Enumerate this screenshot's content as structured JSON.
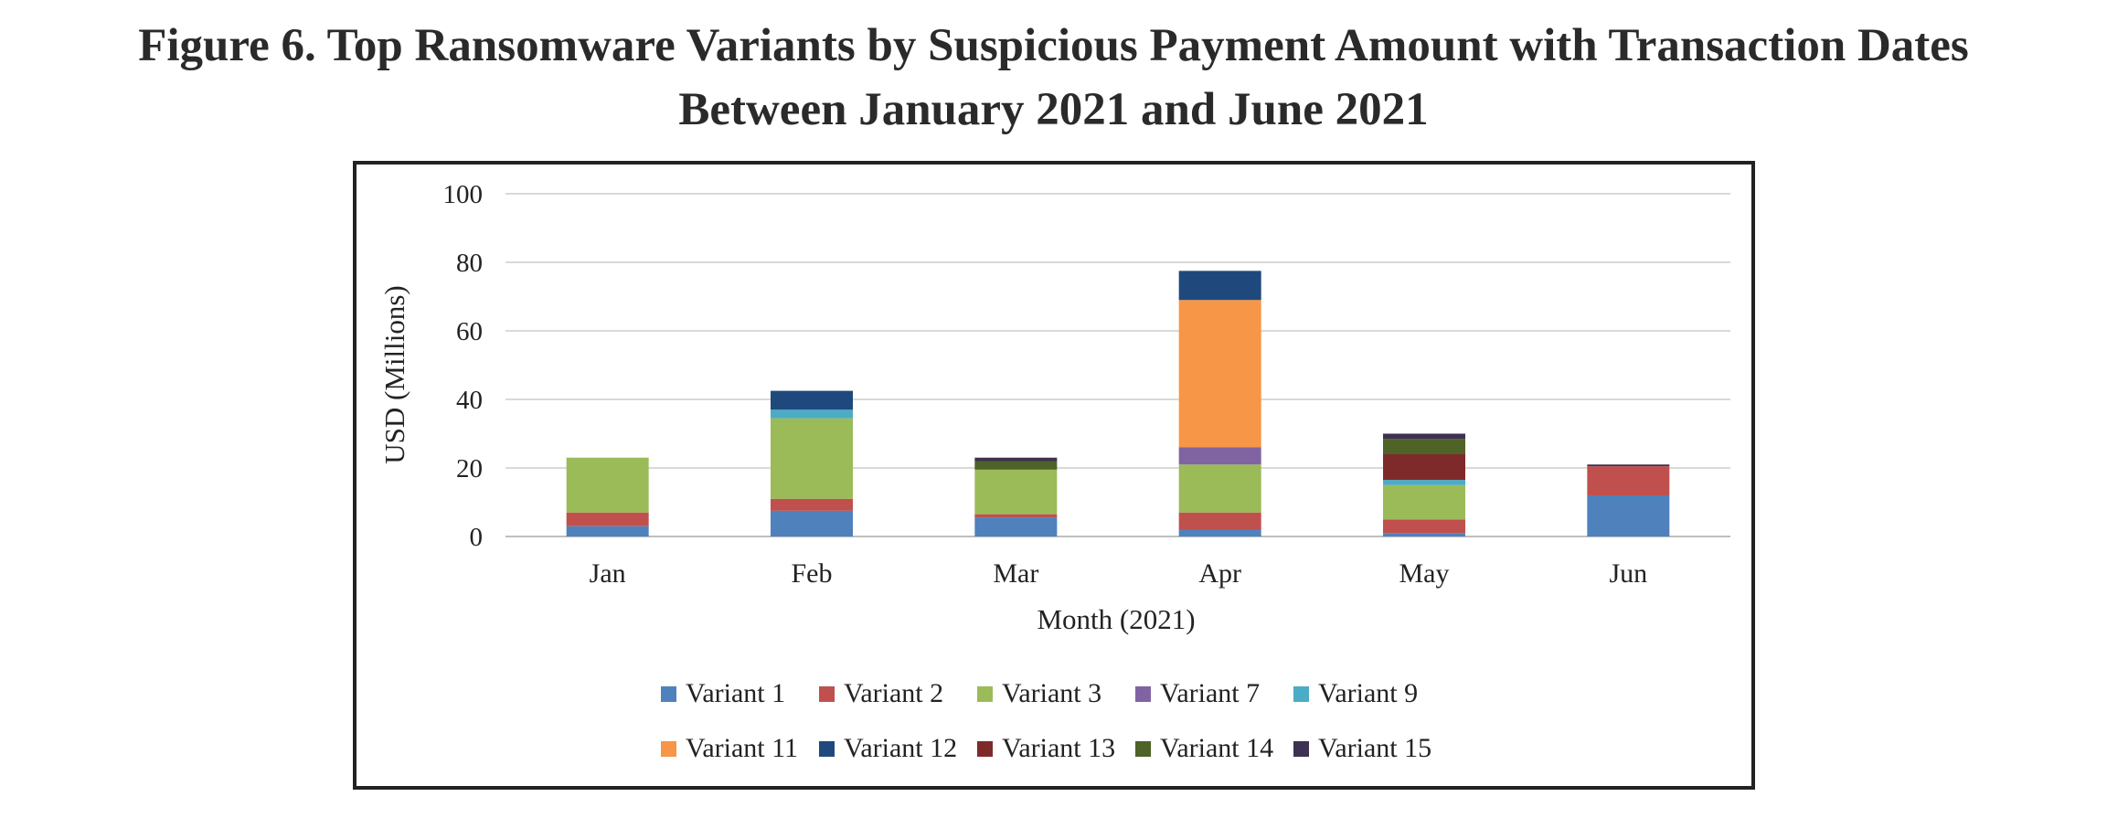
{
  "figure": {
    "title_line1": "Figure 6. Top Ransomware Variants by Suspicious Payment Amount with Transaction Dates",
    "title_line2": "Between January 2021 and June 2021"
  },
  "chart_data": {
    "type": "bar",
    "stacked": true,
    "categories": [
      "Jan",
      "Feb",
      "Mar",
      "Apr",
      "May",
      "Jun"
    ],
    "xlabel": "Month (2021)",
    "ylabel": "USD (Millions)",
    "ylim": [
      0,
      100
    ],
    "yticks": [
      0,
      20,
      40,
      60,
      80,
      100
    ],
    "grid": true,
    "legend_position": "bottom",
    "series": [
      {
        "name": "Variant 1",
        "color": "#4F81BD",
        "values": [
          3,
          7.5,
          5.5,
          2,
          1,
          12
        ]
      },
      {
        "name": "Variant 2",
        "color": "#C0504D",
        "values": [
          4,
          3.5,
          1,
          5,
          4,
          8.5
        ]
      },
      {
        "name": "Variant 3",
        "color": "#9BBB59",
        "values": [
          16,
          23.5,
          13,
          14,
          10,
          0
        ]
      },
      {
        "name": "Variant 7",
        "color": "#8064A2",
        "values": [
          0,
          0,
          0,
          5,
          0,
          0
        ]
      },
      {
        "name": "Variant 9",
        "color": "#4BACC6",
        "values": [
          0,
          2.5,
          0,
          0,
          1.5,
          0
        ]
      },
      {
        "name": "Variant 11",
        "color": "#F79646",
        "values": [
          0,
          0,
          0,
          43,
          0,
          0
        ]
      },
      {
        "name": "Variant 12",
        "color": "#1F497D",
        "values": [
          0,
          5.5,
          0,
          8.5,
          0,
          0
        ]
      },
      {
        "name": "Variant 13",
        "color": "#7F2A2A",
        "values": [
          0,
          0,
          0,
          0,
          7.5,
          0
        ]
      },
      {
        "name": "Variant 14",
        "color": "#4F6228",
        "values": [
          0,
          0,
          2.5,
          0,
          4.5,
          0
        ]
      },
      {
        "name": "Variant 15",
        "color": "#3F3151",
        "values": [
          0,
          0,
          1,
          0,
          1.5,
          0.5
        ]
      }
    ]
  }
}
